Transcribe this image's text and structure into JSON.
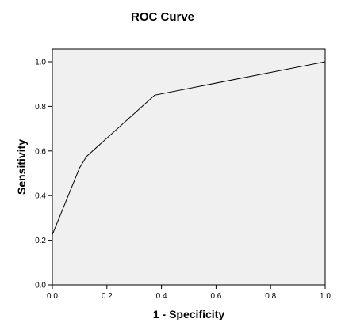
{
  "chart_data": {
    "type": "line",
    "title": "ROC Curve",
    "xlabel": "1 - Specificity",
    "ylabel": "Sensitivity",
    "xlim": [
      0.0,
      1.0
    ],
    "ylim": [
      0.0,
      1.0
    ],
    "xticks": [
      "0.0",
      "0.2",
      "0.4",
      "0.6",
      "0.8",
      "1.0"
    ],
    "yticks": [
      "0.0",
      "0.2",
      "0.4",
      "0.6",
      "0.8",
      "1.0"
    ],
    "grid": false,
    "legend": "none",
    "plot_background": "#f0f0f0",
    "line_color": "#000000",
    "series": [
      {
        "x": [
          0.0,
          0.0,
          0.1,
          0.125,
          0.375,
          1.0
        ],
        "y": [
          0.0,
          0.225,
          0.525,
          0.575,
          0.85,
          1.0
        ]
      }
    ]
  }
}
